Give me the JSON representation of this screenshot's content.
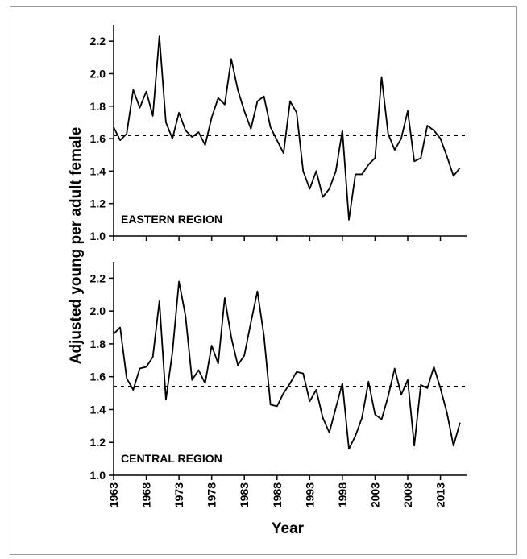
{
  "figure": {
    "ylabel": "Adjusted young per adult female",
    "xlabel": "Year"
  },
  "chart_data": [
    {
      "type": "line",
      "annotation": "EASTERN REGION",
      "color": "#000000",
      "reference_line": 1.62,
      "show_xtick_labels": false,
      "x": [
        1963,
        1964,
        1965,
        1966,
        1967,
        1968,
        1969,
        1970,
        1971,
        1972,
        1973,
        1974,
        1975,
        1976,
        1977,
        1978,
        1979,
        1980,
        1981,
        1982,
        1983,
        1984,
        1985,
        1986,
        1987,
        1988,
        1989,
        1990,
        1991,
        1992,
        1993,
        1994,
        1995,
        1996,
        1997,
        1998,
        1999,
        2000,
        2001,
        2002,
        2003,
        2004,
        2005,
        2006,
        2007,
        2008,
        2009,
        2010,
        2011,
        2012,
        2013,
        2014,
        2015,
        2016
      ],
      "values": [
        1.67,
        1.59,
        1.63,
        1.9,
        1.79,
        1.89,
        1.74,
        2.23,
        1.7,
        1.6,
        1.76,
        1.65,
        1.61,
        1.64,
        1.56,
        1.73,
        1.85,
        1.81,
        2.09,
        1.9,
        1.77,
        1.66,
        1.83,
        1.86,
        1.67,
        1.59,
        1.51,
        1.83,
        1.76,
        1.4,
        1.29,
        1.4,
        1.24,
        1.29,
        1.4,
        1.65,
        1.1,
        1.38,
        1.38,
        1.44,
        1.48,
        1.98,
        1.63,
        1.53,
        1.6,
        1.77,
        1.46,
        1.48,
        1.68,
        1.65,
        1.6,
        1.49,
        1.37,
        1.42
      ],
      "xlim": [
        1963,
        2017
      ],
      "xticks": [
        1963,
        1968,
        1973,
        1978,
        1983,
        1988,
        1993,
        1998,
        2003,
        2008,
        2013
      ],
      "ylim": [
        1.0,
        2.3
      ],
      "yticks": [
        {
          "value": 1,
          "label": "1.0"
        },
        1.2,
        1.4,
        1.6,
        1.8,
        {
          "value": 2,
          "label": "2.0"
        },
        2.2
      ]
    },
    {
      "type": "line",
      "annotation": "CENTRAL REGION",
      "color": "#000000",
      "reference_line": 1.54,
      "show_xtick_labels": true,
      "x": [
        1963,
        1964,
        1965,
        1966,
        1967,
        1968,
        1969,
        1970,
        1971,
        1972,
        1973,
        1974,
        1975,
        1976,
        1977,
        1978,
        1979,
        1980,
        1981,
        1982,
        1983,
        1984,
        1985,
        1986,
        1987,
        1988,
        1989,
        1990,
        1991,
        1992,
        1993,
        1994,
        1995,
        1996,
        1997,
        1998,
        1999,
        2000,
        2001,
        2002,
        2003,
        2004,
        2005,
        2006,
        2007,
        2008,
        2009,
        2010,
        2011,
        2012,
        2013,
        2014,
        2015,
        2016
      ],
      "values": [
        1.86,
        1.9,
        1.59,
        1.52,
        1.65,
        1.66,
        1.72,
        2.06,
        1.46,
        1.75,
        2.18,
        1.97,
        1.58,
        1.64,
        1.56,
        1.79,
        1.68,
        2.08,
        1.84,
        1.67,
        1.73,
        1.93,
        2.12,
        1.85,
        1.43,
        1.42,
        1.5,
        1.56,
        1.63,
        1.62,
        1.45,
        1.52,
        1.35,
        1.26,
        1.41,
        1.56,
        1.16,
        1.24,
        1.35,
        1.57,
        1.37,
        1.34,
        1.48,
        1.65,
        1.49,
        1.58,
        1.18,
        1.55,
        1.53,
        1.66,
        1.53,
        1.38,
        1.18,
        1.32
      ],
      "xlim": [
        1963,
        2017
      ],
      "xticks": [
        1963,
        1968,
        1973,
        1978,
        1983,
        1988,
        1993,
        1998,
        2003,
        2008,
        2013
      ],
      "ylim": [
        1.0,
        2.3
      ],
      "yticks": [
        {
          "value": 1,
          "label": "1.0"
        },
        1.2,
        1.4,
        1.6,
        1.8,
        {
          "value": 2,
          "label": "2.0"
        },
        2.2
      ]
    }
  ]
}
